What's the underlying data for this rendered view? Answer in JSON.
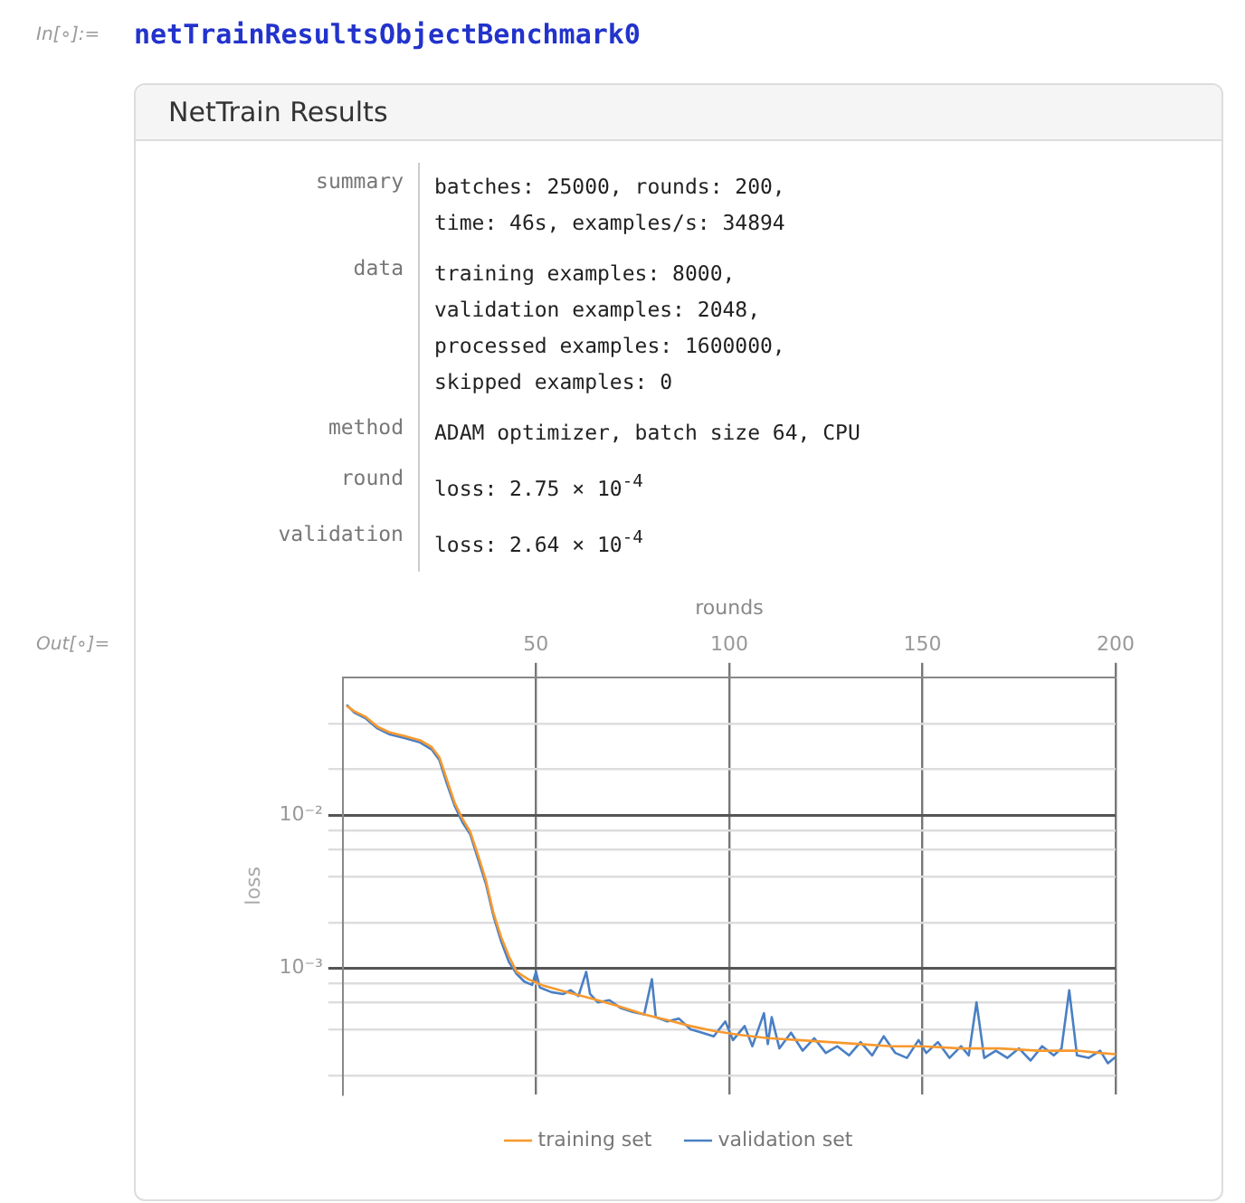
{
  "chart_data": {
    "type": "line",
    "title": "NetTrain Results",
    "xlabel": "rounds",
    "ylabel": "loss",
    "annotations": [
      "In[∘]:=",
      "netTrainResultsObjectBenchmark0",
      "Out[∘]=",
      "summary",
      "batches: 25000, rounds: 200,\ntime: 46s, examples/s: 34894",
      "data",
      "training examples: 8000,\nvalidation examples: 2048,\nprocessed examples: 1600000,\nskipped examples: 0",
      "method",
      "ADAM optimizer, batch size 64, CPU",
      "round",
      "loss: 2.75 × 10$^{-4}$",
      "validation",
      "loss: 2.64 × 10$^{-4}$"
    ],
    "log": "y",
    "grid": true,
    "legend": "bottom",
    "marker": "none",
    "line_style": "solid",
    "xlim": [
      0,
      200
    ],
    "xticks": [
      50,
      100,
      150,
      200
    ],
    "ylim": [
      0.00015,
      0.08
    ],
    "yticks": [
      {
        "value": 0.0002,
        "label": null
      },
      {
        "value": 0.0004,
        "label": null
      },
      {
        "value": 0.0006,
        "label": null
      },
      {
        "value": 0.0008,
        "label": null
      },
      {
        "value": 0.001,
        "label": "10⁻³"
      },
      {
        "value": 0.002,
        "label": null
      },
      {
        "value": 0.004,
        "label": null
      },
      {
        "value": 0.006,
        "label": null
      },
      {
        "value": 0.008,
        "label": null
      },
      {
        "value": 0.01,
        "label": "10⁻²"
      },
      {
        "value": 0.02,
        "label": null
      },
      {
        "value": 0.04,
        "label": null
      }
    ],
    "series": [
      {
        "name": "training set",
        "color": "#f7992f",
        "x": [
          1,
          3,
          6,
          9,
          12,
          16,
          20,
          23,
          25,
          27,
          29,
          31,
          33,
          35,
          37,
          39,
          41,
          43,
          45,
          48,
          52,
          57,
          62,
          67,
          72,
          78,
          84,
          90,
          96,
          102,
          110,
          118,
          126,
          134,
          142,
          150,
          160,
          170,
          180,
          190,
          196,
          200
        ],
        "values": [
          0.052,
          0.048,
          0.044,
          0.038,
          0.035,
          0.033,
          0.031,
          0.028,
          0.024,
          0.017,
          0.012,
          0.0095,
          0.0078,
          0.0055,
          0.0038,
          0.0023,
          0.0016,
          0.0012,
          0.00095,
          0.00085,
          0.00077,
          0.00071,
          0.00066,
          0.00061,
          0.00056,
          0.0005,
          0.00046,
          0.00042,
          0.00039,
          0.00037,
          0.00035,
          0.00034,
          0.00033,
          0.00032,
          0.00031,
          0.00031,
          0.0003,
          0.0003,
          0.00029,
          0.00029,
          0.00028,
          0.000275
        ]
      },
      {
        "name": "validation set",
        "color": "#4a7fc4",
        "x": [
          1,
          3,
          6,
          9,
          12,
          16,
          20,
          23,
          25,
          27,
          29,
          31,
          33,
          35,
          37,
          39,
          41,
          43,
          45,
          47,
          49,
          50,
          51,
          54,
          57,
          59,
          61,
          63,
          64,
          66,
          69,
          72,
          75,
          78,
          80,
          81,
          84,
          87,
          90,
          93,
          96,
          99,
          101,
          104,
          106,
          109,
          110,
          111,
          113,
          116,
          119,
          122,
          125,
          128,
          131,
          134,
          137,
          140,
          143,
          146,
          149,
          151,
          154,
          157,
          160,
          162,
          164,
          166,
          169,
          172,
          175,
          178,
          181,
          184,
          186,
          188,
          190,
          193,
          196,
          198,
          200
        ],
        "values": [
          0.053,
          0.047,
          0.043,
          0.037,
          0.034,
          0.032,
          0.03,
          0.027,
          0.023,
          0.016,
          0.0115,
          0.009,
          0.0075,
          0.0052,
          0.0036,
          0.0022,
          0.0015,
          0.0011,
          0.00092,
          0.00082,
          0.00078,
          0.00095,
          0.00075,
          0.0007,
          0.00068,
          0.00072,
          0.00066,
          0.00095,
          0.00068,
          0.0006,
          0.00062,
          0.00055,
          0.00052,
          0.0005,
          0.00085,
          0.00048,
          0.00045,
          0.00047,
          0.0004,
          0.00038,
          0.00036,
          0.00045,
          0.00034,
          0.00042,
          0.00031,
          0.00051,
          0.00032,
          0.00048,
          0.0003,
          0.00038,
          0.00029,
          0.00035,
          0.00028,
          0.00031,
          0.00027,
          0.00033,
          0.00027,
          0.00036,
          0.00028,
          0.00026,
          0.00034,
          0.00028,
          0.00033,
          0.00026,
          0.00031,
          0.00027,
          0.0006,
          0.00026,
          0.00029,
          0.00026,
          0.0003,
          0.00025,
          0.00031,
          0.00027,
          0.0003,
          0.00072,
          0.00027,
          0.00026,
          0.00029,
          0.00024,
          0.000264
        ]
      }
    ]
  }
}
